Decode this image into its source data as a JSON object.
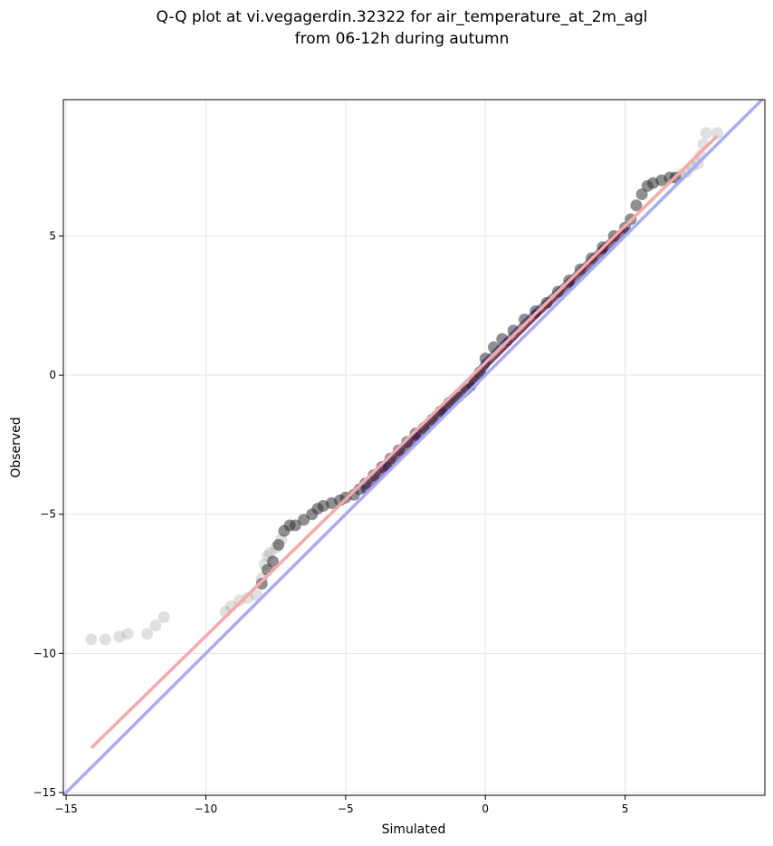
{
  "chart_data": {
    "type": "scatter",
    "title": [
      "Q-Q plot at vi.vegagerdin.32322 for air_temperature_at_2m_agl",
      "from 06-12h during autumn"
    ],
    "xlabel": "Simulated",
    "ylabel": "Observed",
    "xlim": [
      -15.1,
      10.0
    ],
    "ylim": [
      -15.1,
      9.9
    ],
    "xticks": [
      -15,
      -10,
      -5,
      0,
      5
    ],
    "yticks": [
      -15,
      -10,
      -5,
      0,
      5
    ],
    "xtick_labels": [
      "−15",
      "−10",
      "−5",
      "0",
      "5"
    ],
    "ytick_labels": [
      "−15",
      "−10",
      "−5",
      "0",
      "5"
    ],
    "grid": true,
    "series": [
      {
        "kind": "identity_line",
        "color": "#aaaaf5",
        "x": [
          -15.1,
          10.0
        ],
        "y": [
          -15.1,
          10.0
        ]
      },
      {
        "kind": "fit_line",
        "color": "#f5a9ab",
        "x": [
          -14.1,
          8.3
        ],
        "y": [
          -13.4,
          8.6
        ]
      },
      {
        "kind": "tail_points",
        "color": "#999999",
        "x": [
          -14.1,
          -13.6,
          -13.1,
          -12.8,
          -12.1,
          -11.8,
          -11.5,
          -9.3,
          -9.1,
          -8.8,
          -8.5,
          -8.2,
          -8.0,
          -7.9,
          -7.8,
          -7.7,
          -7.5,
          -7.3,
          7.0,
          7.2,
          7.4,
          7.6,
          7.7,
          7.8,
          7.9,
          8.3
        ],
        "y": [
          -9.5,
          -9.5,
          -9.4,
          -9.3,
          -9.3,
          -9.0,
          -8.7,
          -8.5,
          -8.3,
          -8.1,
          -8.0,
          -7.9,
          -7.3,
          -6.8,
          -6.5,
          -6.4,
          -6.2,
          -5.9,
          7.2,
          7.3,
          7.5,
          7.6,
          7.9,
          8.3,
          8.7,
          8.7
        ]
      },
      {
        "kind": "core_points",
        "color": "#333333",
        "x": [
          -8.0,
          -7.8,
          -7.6,
          -7.4,
          -7.2,
          -7.0,
          -6.8,
          -6.5,
          -6.2,
          -6.0,
          -5.8,
          -5.5,
          -5.2,
          -5.0,
          -4.7,
          -4.5,
          -4.3,
          -4.0,
          -3.7,
          -3.4,
          -3.1,
          -2.8,
          -2.5,
          -2.2,
          -1.9,
          -1.6,
          -1.3,
          -1.0,
          -0.7,
          -0.4,
          -0.2,
          0.0,
          0.3,
          0.6,
          1.0,
          1.4,
          1.8,
          2.2,
          2.6,
          3.0,
          3.4,
          3.8,
          4.2,
          4.6,
          5.0,
          5.2,
          5.4,
          5.6,
          5.8,
          6.0,
          6.3,
          6.6,
          6.8
        ],
        "y": [
          -7.5,
          -7.0,
          -6.7,
          -6.1,
          -5.6,
          -5.4,
          -5.4,
          -5.2,
          -5.0,
          -4.8,
          -4.7,
          -4.6,
          -4.5,
          -4.4,
          -4.3,
          -4.1,
          -3.9,
          -3.6,
          -3.3,
          -3.0,
          -2.7,
          -2.4,
          -2.1,
          -1.9,
          -1.6,
          -1.3,
          -1.0,
          -0.8,
          -0.5,
          -0.2,
          0.1,
          0.6,
          1.0,
          1.3,
          1.6,
          2.0,
          2.3,
          2.6,
          3.0,
          3.4,
          3.8,
          4.2,
          4.6,
          5.0,
          5.3,
          5.6,
          6.1,
          6.5,
          6.8,
          6.9,
          7.0,
          7.1,
          7.1
        ]
      },
      {
        "kind": "dense_center",
        "color": "#1a1a55",
        "x": [
          -4.3,
          -3.5,
          -2.5,
          -1.5,
          -0.5,
          0.0,
          0.8,
          1.8,
          3.0,
          4.2,
          5.0
        ],
        "y": [
          -4.1,
          -3.3,
          -2.2,
          -1.3,
          -0.4,
          0.4,
          1.2,
          2.2,
          3.3,
          4.5,
          5.2
        ]
      }
    ]
  }
}
